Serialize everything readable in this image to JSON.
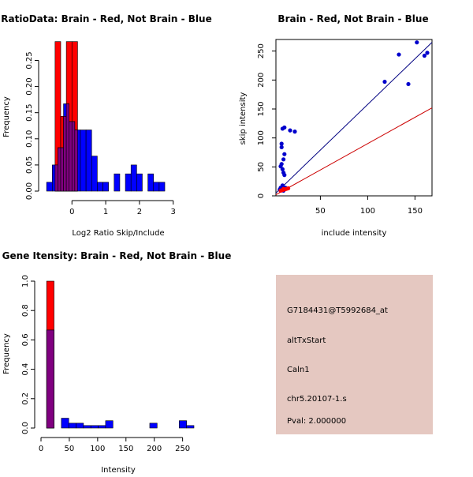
{
  "chart_data": [
    {
      "type": "bar",
      "title": "RatioData: Brain - Red, Not Brain - Blue",
      "xlabel": "Log2 Ratio Skip/Include",
      "ylabel": "Frequency",
      "xlim": [
        -0.8,
        3.8
      ],
      "ylim": [
        0,
        0.29
      ],
      "xticks": [
        0,
        1,
        2,
        3
      ],
      "yticks": [
        0.0,
        0.05,
        0.1,
        0.15,
        0.2,
        0.25
      ],
      "ytick_labels": [
        "0.00",
        "0.05",
        "0.10",
        "0.15",
        "0.20",
        "0.25"
      ],
      "series": [
        {
          "name": "Brain",
          "color": "#ff0000",
          "bins": [
            [
              -0.5,
              -0.333,
              0.286
            ],
            [
              -0.333,
              -0.167,
              0.143
            ],
            [
              -0.167,
              0,
              0.286
            ],
            [
              0,
              0.167,
              0.286
            ]
          ]
        },
        {
          "name": "Not Brain",
          "color": "#0000ff",
          "bins": [
            [
              -0.75,
              -0.583,
              0.017
            ],
            [
              -0.583,
              -0.417,
              0.05
            ],
            [
              -0.417,
              -0.25,
              0.083
            ],
            [
              -0.25,
              -0.083,
              0.167
            ],
            [
              -0.083,
              0.083,
              0.133
            ],
            [
              0.083,
              0.25,
              0.117
            ],
            [
              0.25,
              0.417,
              0.117
            ],
            [
              0.417,
              0.583,
              0.117
            ],
            [
              0.583,
              0.75,
              0.067
            ],
            [
              0.75,
              0.917,
              0.017
            ],
            [
              0.917,
              1.083,
              0.017
            ],
            [
              1.083,
              1.25,
              0
            ],
            [
              1.25,
              1.417,
              0.033
            ],
            [
              1.417,
              1.583,
              0
            ],
            [
              1.583,
              1.75,
              0.033
            ],
            [
              1.75,
              1.917,
              0.05
            ],
            [
              1.917,
              2.083,
              0.033
            ],
            [
              2.083,
              2.25,
              0
            ],
            [
              2.25,
              2.417,
              0.033
            ],
            [
              2.417,
              2.583,
              0.017
            ],
            [
              2.583,
              2.75,
              0.017
            ]
          ]
        }
      ]
    },
    {
      "type": "scatter",
      "title": "Brain - Red, Not Brain - Blue",
      "xlabel": "include intensity",
      "ylabel": "skip intensity",
      "xlim": [
        3,
        168
      ],
      "ylim": [
        0,
        270
      ],
      "xticks": [
        50,
        100,
        150
      ],
      "yticks": [
        0,
        50,
        100,
        150,
        200,
        250
      ],
      "series": [
        {
          "name": "Not Brain",
          "color": "#0000cc",
          "points": [
            [
              152,
              265
            ],
            [
              133,
              244
            ],
            [
              160,
              242
            ],
            [
              163,
              247
            ],
            [
              118,
              197
            ],
            [
              143,
              193
            ],
            [
              10,
              116
            ],
            [
              12,
              118
            ],
            [
              18,
              113
            ],
            [
              23,
              111
            ],
            [
              9,
              90
            ],
            [
              9,
              84
            ],
            [
              12,
              72
            ],
            [
              11,
              63
            ],
            [
              9,
              55
            ],
            [
              8,
              51
            ],
            [
              10,
              46
            ],
            [
              11,
              40
            ],
            [
              12,
              36
            ],
            [
              10,
              18
            ],
            [
              11,
              15
            ],
            [
              8,
              14
            ],
            [
              9,
              12
            ],
            [
              7,
              11
            ],
            [
              10,
              10
            ],
            [
              12,
              11
            ],
            [
              13,
              12
            ],
            [
              8,
              9
            ],
            [
              9,
              10
            ],
            [
              11,
              9
            ],
            [
              13,
              14
            ]
          ]
        },
        {
          "name": "Brain",
          "color": "#ff0000",
          "points": [
            [
              8,
              9
            ],
            [
              10,
              10
            ],
            [
              12,
              11
            ],
            [
              14,
              12
            ],
            [
              16,
              13
            ],
            [
              11,
              12
            ]
          ]
        }
      ],
      "lines": [
        {
          "name": "blue fit",
          "color": "#000080",
          "from": [
            3,
            5
          ],
          "to": [
            168,
            265
          ]
        },
        {
          "name": "red fit",
          "color": "#cc0000",
          "from": [
            3,
            2
          ],
          "to": [
            168,
            152
          ]
        }
      ]
    },
    {
      "type": "bar",
      "title": "Gene Itensity: Brain - Red, Not Brain - Blue",
      "xlabel": "Intensity",
      "ylabel": "Frequency",
      "xlim": [
        0,
        270
      ],
      "ylim": [
        0,
        1.0
      ],
      "xticks": [
        0,
        50,
        100,
        150,
        200,
        250
      ],
      "yticks": [
        0.0,
        0.2,
        0.4,
        0.6,
        0.8,
        1.0
      ],
      "ytick_labels": [
        "0.0",
        "0.2",
        "0.4",
        "0.6",
        "0.8",
        "1.0"
      ],
      "series": [
        {
          "name": "Brain",
          "color": "#ff0000",
          "bins": [
            [
              10,
              23,
              1.0
            ]
          ]
        },
        {
          "name": "Not Brain",
          "color": "#0000ff",
          "bins": [
            [
              10,
              23,
              0.667
            ],
            [
              23,
              36,
              0
            ],
            [
              36,
              49,
              0.067
            ],
            [
              49,
              62,
              0.033
            ],
            [
              62,
              75,
              0.033
            ],
            [
              75,
              88,
              0.017
            ],
            [
              88,
              101,
              0.017
            ],
            [
              101,
              114,
              0.017
            ],
            [
              114,
              127,
              0.05
            ],
            [
              127,
              140,
              0
            ],
            [
              140,
              153,
              0
            ],
            [
              153,
              166,
              0
            ],
            [
              166,
              179,
              0
            ],
            [
              179,
              192,
              0
            ],
            [
              192,
              205,
              0.033
            ],
            [
              205,
              218,
              0
            ],
            [
              218,
              231,
              0
            ],
            [
              231,
              244,
              0
            ],
            [
              244,
              257,
              0.05
            ],
            [
              257,
              270,
              0.017
            ]
          ]
        }
      ]
    }
  ],
  "info_panel": {
    "probe_id": "G7184431@T5992684_at",
    "event_type": "altTxStart",
    "gene": "Caln1",
    "locus": "chr5.20107-1.s",
    "pval": "Pval: 2.000000",
    "bg_color": "#e5c8c1",
    "pval_color": "#aa0000"
  },
  "colors": {
    "overlap": "#800080"
  }
}
